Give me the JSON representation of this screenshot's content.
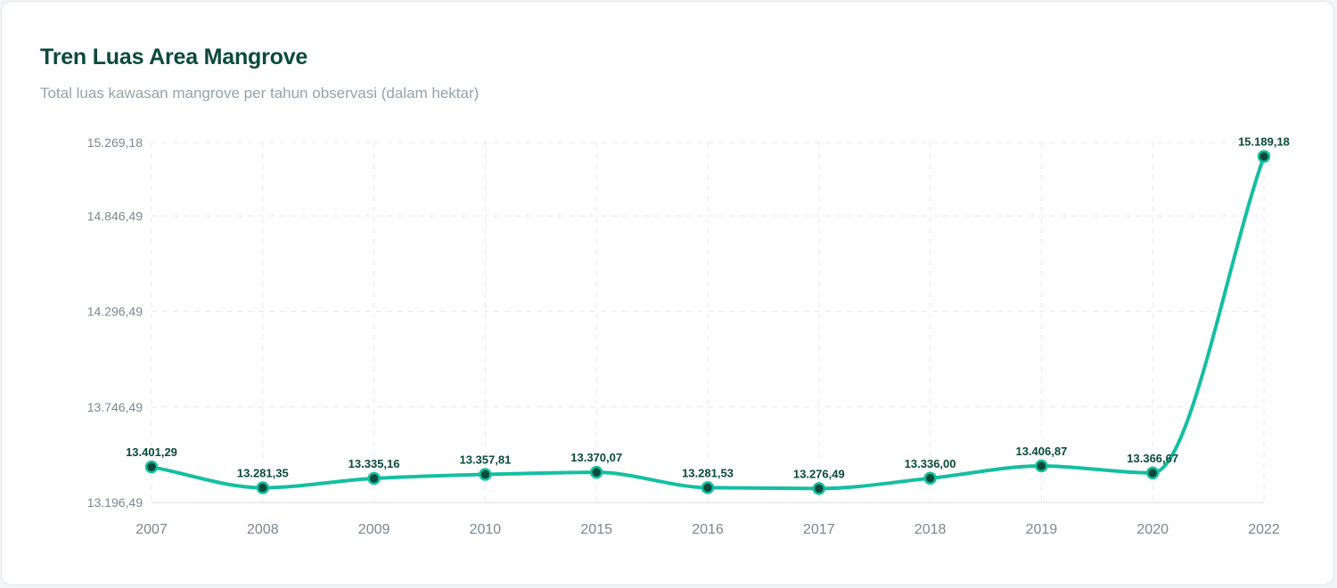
{
  "header": {
    "title": "Tren Luas Area Mangrove",
    "subtitle": "Total luas kawasan mangrove per tahun observasi (dalam hektar)"
  },
  "colors": {
    "line": "#14bfa0",
    "point_fill": "#0b4a3a",
    "point_stroke": "#14bfa0",
    "title": "#0b4a3a",
    "grid": "#e6e9ec"
  },
  "chart_data": {
    "type": "line",
    "title": "Tren Luas Area Mangrove",
    "subtitle": "Total luas kawasan mangrove per tahun observasi (dalam hektar)",
    "xlabel": "",
    "ylabel": "",
    "categories": [
      "2007",
      "2008",
      "2009",
      "2010",
      "2015",
      "2016",
      "2017",
      "2018",
      "2019",
      "2020",
      "2022"
    ],
    "series": [
      {
        "values": [
          13401.29,
          13281.35,
          13335.16,
          13357.81,
          13370.07,
          13281.53,
          13276.49,
          13336.0,
          13406.87,
          13366.67,
          15189.18
        ],
        "labels": [
          "13.401,29",
          "13.281,35",
          "13.335,16",
          "13.357,81",
          "13.370,07",
          "13.281,53",
          "13.276,49",
          "13.336,00",
          "13.406,87",
          "13.366,67",
          "15.189,18"
        ]
      }
    ],
    "y_ticks": [
      13196.49,
      13746.49,
      14296.49,
      14846.49,
      15269.18
    ],
    "y_tick_labels": [
      "13.196,49",
      "13.746,49",
      "14.296,49",
      "14.846,49",
      "15.269,18"
    ],
    "ylim": [
      13196.49,
      15269.18
    ],
    "grid": true,
    "legend": "none",
    "smooth": true
  }
}
